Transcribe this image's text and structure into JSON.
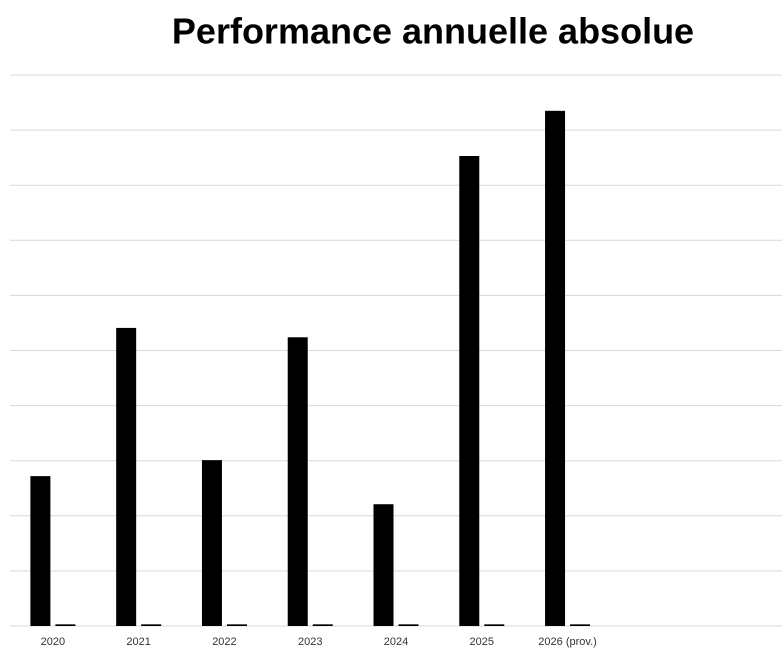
{
  "chart_data": {
    "type": "bar",
    "title": "Performance annuelle absolue",
    "categories": [
      "2020",
      "2021",
      "2022",
      "2023",
      "2024",
      "2025",
      "2026 (prov.)",
      null,
      null
    ],
    "series": [
      {
        "color": "#000000",
        "values": [
          2.72,
          5.41,
          3.01,
          5.24,
          2.21,
          8.53,
          9.35,
          null,
          null
        ]
      },
      {
        "color": "#000000",
        "values": [
          0.03,
          0.03,
          0.03,
          0.03,
          0.03,
          0.03,
          0.03,
          null,
          null
        ]
      }
    ],
    "ylim": [
      0,
      10
    ],
    "yticks": [
      0,
      1,
      2,
      3,
      4,
      5,
      6,
      7,
      8,
      9,
      10
    ],
    "grid": true
  }
}
